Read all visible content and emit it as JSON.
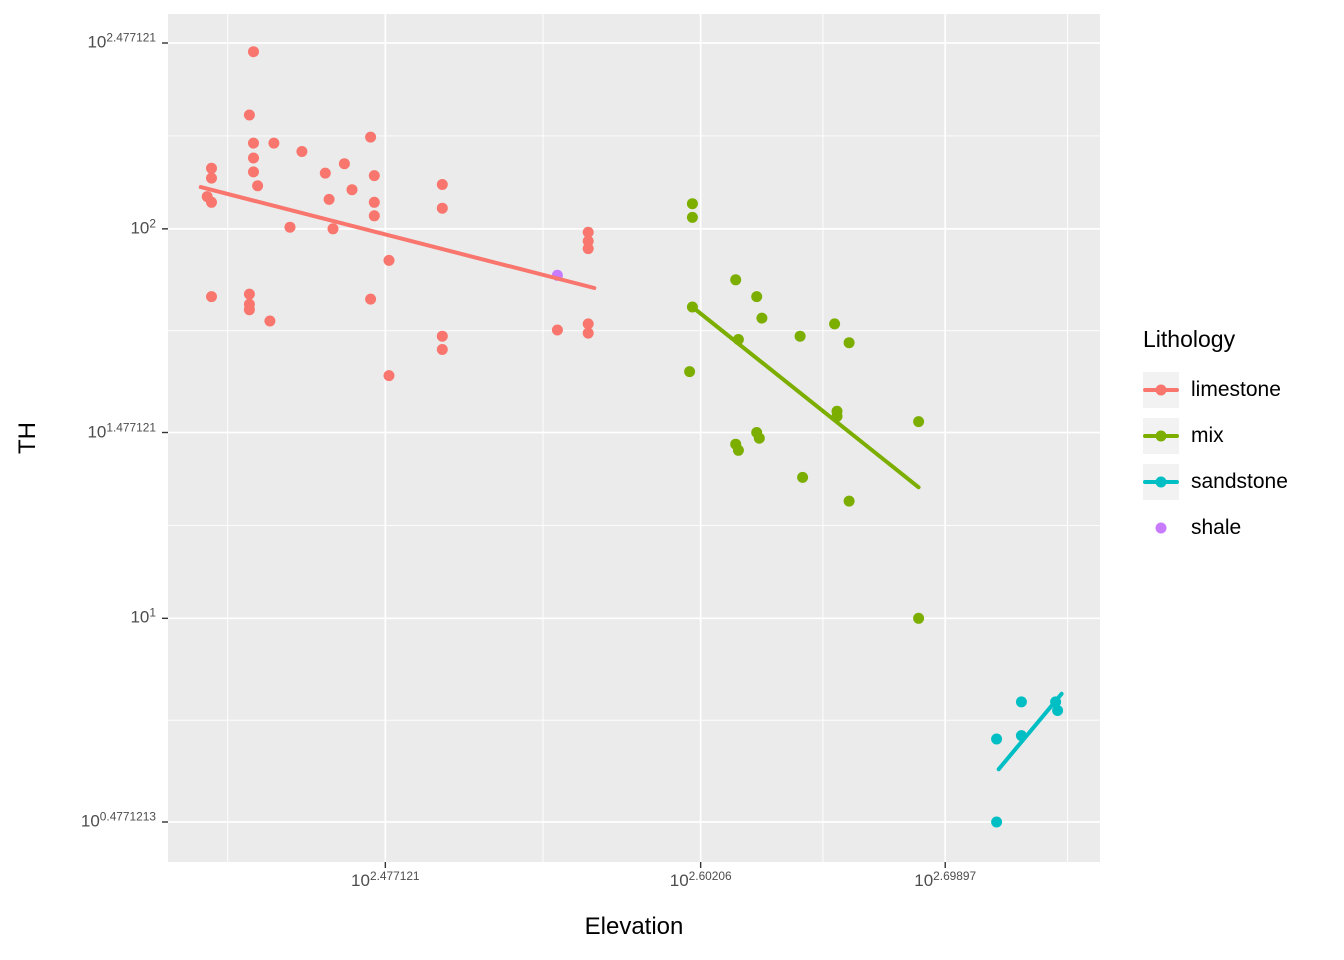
{
  "figure": {
    "background": "#FFFFFF",
    "panel_background": "#EBEBEB",
    "grid_color": "#FFFFFF",
    "tick_color": "#333333",
    "tick_label_color": "#4D4D4D",
    "axis_title_color": "#000000"
  },
  "chart_data": {
    "type": "scatter",
    "title": "",
    "xlabel": "Elevation",
    "ylabel": "TH",
    "x_scale": "log10",
    "y_scale": "log10",
    "grid": true,
    "legend_position": "right",
    "xlim_log": [
      2.391,
      2.7603
    ],
    "ylim_log": [
      0.3744,
      2.5516
    ],
    "x_ticks": [
      {
        "label_base": "10",
        "label_exp": "2.477121",
        "log": 2.477121
      },
      {
        "label_base": "10",
        "label_exp": "2.60206",
        "log": 2.60206
      },
      {
        "label_base": "10",
        "label_exp": "2.69897",
        "log": 2.69897
      }
    ],
    "y_ticks": [
      {
        "label_base": "10",
        "label_exp": "2.477121",
        "log": 2.477121
      },
      {
        "label_base": "10",
        "label_exp": "2",
        "log": 2
      },
      {
        "label_base": "10",
        "label_exp": "1.477121",
        "log": 1.477121
      },
      {
        "label_base": "10",
        "label_exp": "1",
        "log": 1
      },
      {
        "label_base": "10",
        "label_exp": "0.4771213",
        "log": 0.4771213
      }
    ],
    "x_minor_log": [
      2.41465,
      2.53959,
      2.65052,
      2.74743
    ],
    "y_minor_log": [
      2.23856,
      1.73856,
      1.23856,
      0.73856
    ],
    "legend": {
      "title": "Lithology",
      "entries": [
        {
          "label": "limestone",
          "color": "#F8766D",
          "has_line": true
        },
        {
          "label": "mix",
          "color": "#7CAE00",
          "has_line": true
        },
        {
          "label": "sandstone",
          "color": "#00BFC4",
          "has_line": true
        },
        {
          "label": "shale",
          "color": "#C77CFF",
          "has_line": false
        }
      ]
    },
    "series": [
      {
        "name": "limestone",
        "color": "#F8766D",
        "points": [
          [
            266,
            285
          ],
          [
            265,
            196
          ],
          [
            266,
            166
          ],
          [
            271,
            166
          ],
          [
            256,
            143
          ],
          [
            256,
            135
          ],
          [
            266,
            152
          ],
          [
            266,
            140
          ],
          [
            267,
            129
          ],
          [
            255,
            121
          ],
          [
            256,
            117
          ],
          [
            278,
            158
          ],
          [
            284,
            139
          ],
          [
            285,
            119
          ],
          [
            289,
            147
          ],
          [
            291,
            126
          ],
          [
            275,
            101
          ],
          [
            286,
            100
          ],
          [
            296,
            172
          ],
          [
            297,
            137
          ],
          [
            297,
            117
          ],
          [
            297,
            108
          ],
          [
            301,
            83
          ],
          [
            316,
            130
          ],
          [
            316,
            113
          ],
          [
            361,
            98
          ],
          [
            361,
            93
          ],
          [
            361,
            89
          ],
          [
            256,
            67
          ],
          [
            265,
            68
          ],
          [
            265,
            64
          ],
          [
            265,
            62
          ],
          [
            270,
            58
          ],
          [
            296,
            66
          ],
          [
            301,
            42
          ],
          [
            316,
            53
          ],
          [
            316,
            49
          ],
          [
            351,
            55
          ],
          [
            361,
            57
          ],
          [
            361,
            54
          ]
        ],
        "trend": {
          "x": [
            253.5,
            363
          ],
          "y": [
            128,
            70.5
          ]
        }
      },
      {
        "name": "mix",
        "color": "#7CAE00",
        "points": [
          [
            397,
            116
          ],
          [
            397,
            107
          ],
          [
            397,
            63
          ],
          [
            396,
            43
          ],
          [
            413,
            74
          ],
          [
            421,
            67
          ],
          [
            423,
            59
          ],
          [
            414,
            52
          ],
          [
            438,
            53
          ],
          [
            452,
            57
          ],
          [
            458,
            51
          ],
          [
            413,
            28
          ],
          [
            414,
            27
          ],
          [
            421,
            30
          ],
          [
            422,
            29
          ],
          [
            439,
            23
          ],
          [
            453,
            34
          ],
          [
            453,
            33
          ],
          [
            488,
            32
          ],
          [
            458,
            20
          ],
          [
            488,
            10
          ]
        ],
        "trend": {
          "x": [
            397,
            488
          ],
          "y": [
            63,
            21.7
          ]
        }
      },
      {
        "name": "sandstone",
        "color": "#00BFC4",
        "points": [
          [
            524,
            4.9
          ],
          [
            536,
            6.1
          ],
          [
            536,
            5.0
          ],
          [
            553,
            6.1
          ],
          [
            554,
            5.8
          ],
          [
            524,
            3.0
          ]
        ],
        "trend": {
          "x": [
            525,
            556
          ],
          "y": [
            4.1,
            6.4
          ]
        }
      },
      {
        "name": "shale",
        "color": "#C77CFF",
        "points": [
          [
            351,
            76
          ]
        ],
        "trend": null
      }
    ]
  }
}
